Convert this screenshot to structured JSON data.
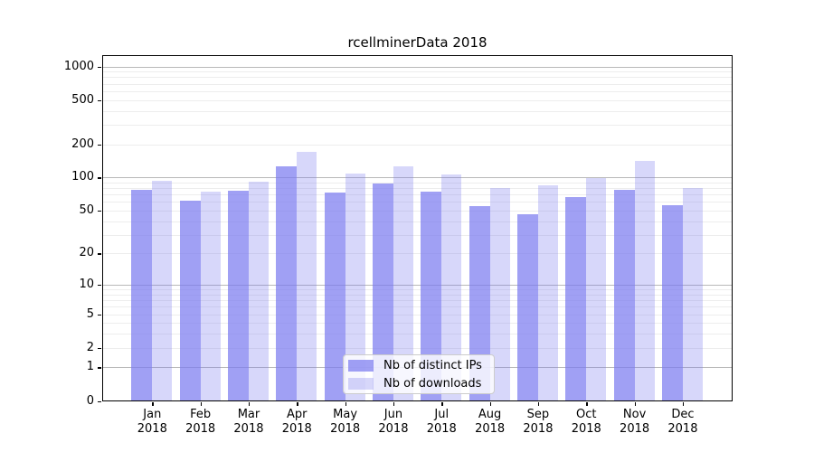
{
  "chart_data": {
    "type": "bar",
    "title": "rcellminerData 2018",
    "y_scale": "log1p",
    "year": "2018",
    "categories": [
      "Jan",
      "Feb",
      "Mar",
      "Apr",
      "May",
      "Jun",
      "Jul",
      "Aug",
      "Sep",
      "Oct",
      "Nov",
      "Dec"
    ],
    "series": [
      {
        "name": "Nb of distinct IPs",
        "color": "rgba(124,124,240,0.72)",
        "values": [
          77,
          61,
          76,
          126,
          73,
          88,
          74,
          55,
          46,
          66,
          78,
          56
        ]
      },
      {
        "name": "Nb of downloads",
        "color": "rgba(124,124,240,0.30)",
        "values": [
          93,
          74,
          91,
          172,
          108,
          126,
          106,
          81,
          85,
          99,
          141,
          81
        ]
      }
    ],
    "y_ticks": [
      0,
      1,
      2,
      5,
      10,
      20,
      50,
      100,
      200,
      500,
      1000
    ],
    "ylim": [
      0,
      1265
    ],
    "xlabel": "",
    "ylabel": "",
    "grid": {
      "major_color": "#b8b8b8",
      "minor_color": "#ededed",
      "major_lines_at": [
        1,
        10,
        100,
        1000
      ]
    },
    "legend": {
      "position": "lower center",
      "entries": [
        "Nb of distinct IPs",
        "Nb of downloads"
      ]
    },
    "spine_color": "#000000",
    "text_color": "#000000",
    "background_color": "#ffffff"
  }
}
